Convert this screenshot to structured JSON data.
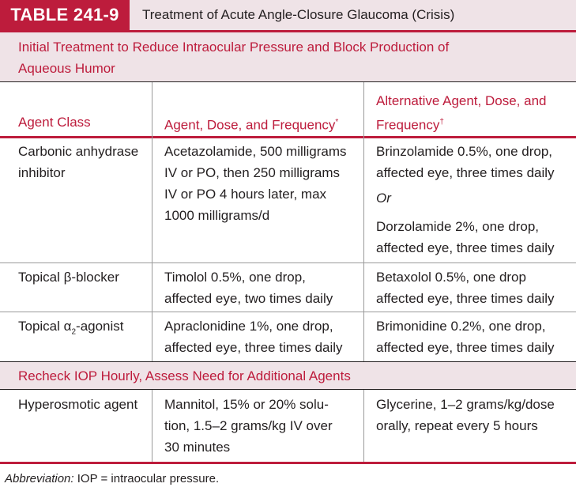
{
  "header": {
    "table_number": "TABLE 241-9",
    "title": "Treatment of Acute Angle-Closure Glaucoma (Crisis)"
  },
  "section1": {
    "heading_line1": "Initial Treatment to Reduce Intraocular Pressure and Block Production of",
    "heading_line2": "Aqueous Humor"
  },
  "columns": {
    "agent_class": "Agent Class",
    "agent_dose": "Agent, Dose, and Frequency",
    "agent_dose_mark": "*",
    "alt_line1": "Alternative Agent, Dose, and",
    "alt_line2": "Frequency",
    "alt_mark": "†"
  },
  "rows": {
    "r1": {
      "class": [
        "Carbonic anhydrase",
        "inhibitor"
      ],
      "agent": [
        "Acetazolamide, 500 milligrams",
        "IV or PO, then 250 milligrams",
        "IV or PO 4 hours later, max",
        "1000 milligrams/d"
      ],
      "alt_a": [
        "Brinzolamide 0.5%, one drop,",
        "affected eye, three times daily"
      ],
      "alt_or": "Or",
      "alt_b": [
        "Dorzolamide 2%, one drop,",
        "affected eye, three times daily"
      ]
    },
    "r2": {
      "class": "Topical β-blocker",
      "agent": [
        "Timolol 0.5%, one drop,",
        "affected eye, two times daily"
      ],
      "alt": [
        "Betaxolol 0.5%, one drop",
        "affected eye, three times daily"
      ]
    },
    "r3": {
      "class_prefix": "Topical α",
      "class_sub": "2",
      "class_suffix": "-agonist",
      "agent": [
        "Apraclonidine 1%, one drop,",
        "affected eye, three times daily"
      ],
      "alt": [
        "Brimonidine 0.2%, one drop,",
        "affected eye, three times daily"
      ]
    }
  },
  "section2": {
    "heading": "Recheck IOP Hourly, Assess Need for Additional Agents"
  },
  "rows2": {
    "r4": {
      "class": "Hyperosmotic agent",
      "agent": [
        "Mannitol, 15% or 20% solu-",
        "tion, 1.5–2 grams/kg IV over",
        "30 minutes"
      ],
      "alt": [
        "Glycerine, 1–2 grams/kg/dose",
        "orally, repeat every 5 hours"
      ]
    }
  },
  "footer": {
    "label": "Abbreviation:",
    "text": " IOP = intraocular pressure."
  },
  "colors": {
    "accent": "#bd1c3c",
    "tint": "#efe3e7"
  }
}
